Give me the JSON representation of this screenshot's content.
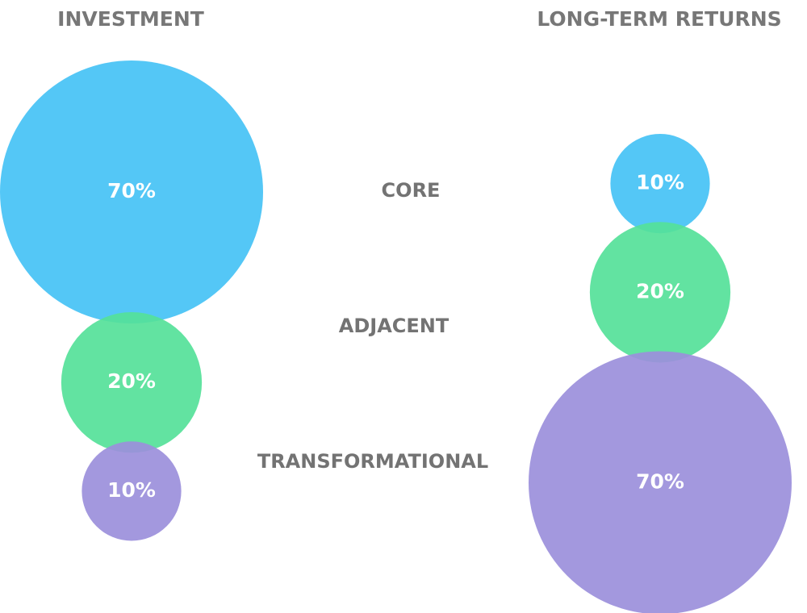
{
  "chart_data": {
    "type": "bubble",
    "categories": [
      "CORE",
      "ADJACENT",
      "TRANSFORMATIONAL"
    ],
    "colors": [
      "#45c2f5",
      "#55e199",
      "#9b8fdb"
    ],
    "series": [
      {
        "name": "INVESTMENT",
        "values": [
          70,
          20,
          10
        ],
        "value_labels": [
          "70%",
          "20%",
          "10%"
        ]
      },
      {
        "name": "LONG-TERM RETURNS",
        "values": [
          10,
          20,
          70
        ],
        "value_labels": [
          "10%",
          "20%",
          "70%"
        ]
      }
    ]
  }
}
